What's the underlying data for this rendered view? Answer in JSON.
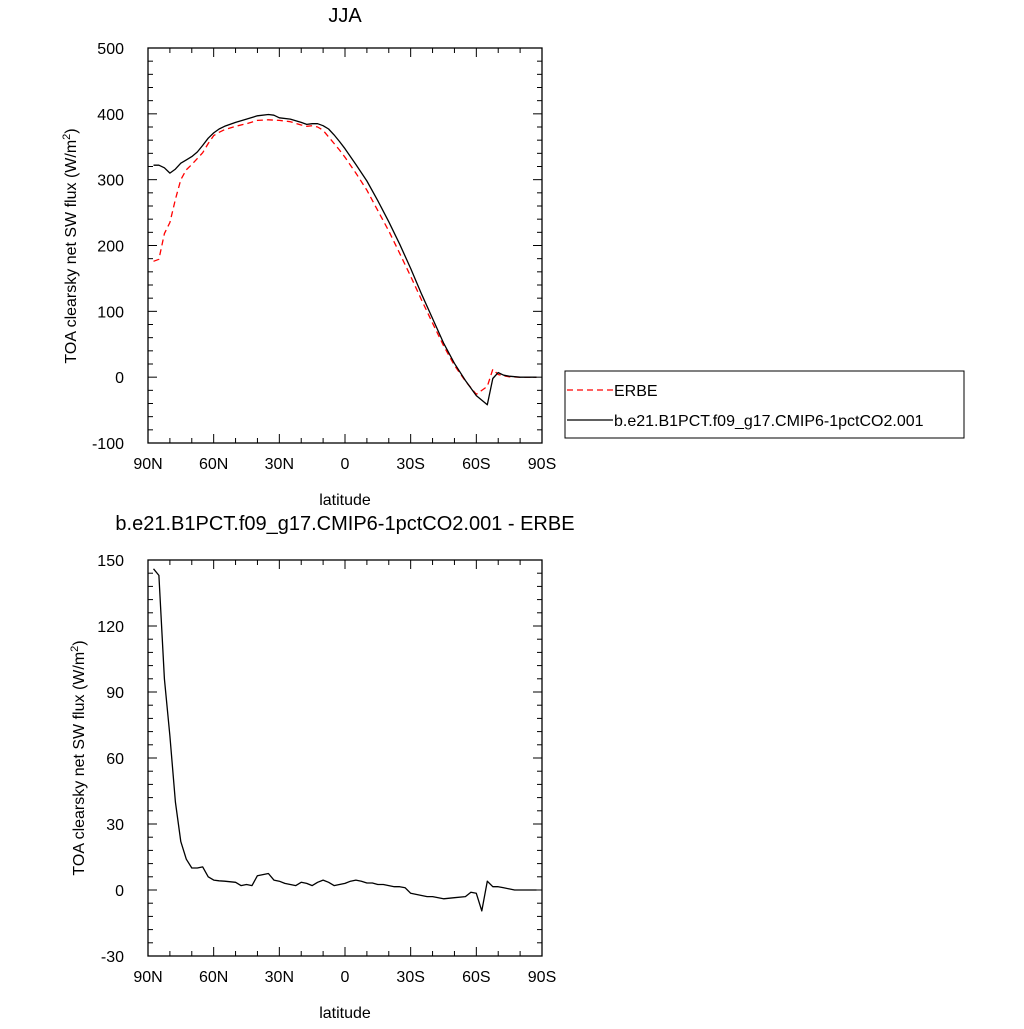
{
  "chart_data": [
    {
      "type": "line",
      "title": "JJA",
      "xlabel": "latitude",
      "ylabel": "TOA clearsky net SW flux (W/m",
      "ylabel_sup": "2",
      "ylabel_close": ")",
      "xlim": [
        90,
        -90
      ],
      "ylim": [
        -100,
        500
      ],
      "xticks": [
        90,
        60,
        30,
        0,
        -30,
        -60,
        -90
      ],
      "xtick_labels": [
        "90N",
        "60N",
        "30N",
        "0",
        "30S",
        "60S",
        "90S"
      ],
      "yticks": [
        -100,
        0,
        100,
        200,
        300,
        400,
        500
      ],
      "ytick_labels": [
        "-100",
        "0",
        "100",
        "200",
        "300",
        "400",
        "500"
      ],
      "legend_position": "right",
      "series": [
        {
          "name": "ERBE",
          "color": "#ff0000",
          "dash": true,
          "x": [
            87.5,
            85,
            82.5,
            80,
            77.5,
            75,
            72.5,
            70,
            67.5,
            65,
            62.5,
            60,
            57.5,
            55,
            50,
            45,
            40,
            35,
            30,
            25,
            20,
            17.5,
            15,
            12.5,
            10,
            7.5,
            5,
            2.5,
            0,
            -5,
            -10,
            -15,
            -20,
            -25,
            -30,
            -35,
            -40,
            -45,
            -50,
            -55,
            -60,
            -65,
            -67.5,
            -70,
            -72.5,
            -75,
            -80,
            -85,
            -87.5
          ],
          "y": [
            176,
            179,
            218,
            235,
            270,
            300,
            315,
            323,
            332,
            341,
            355,
            367,
            372,
            376,
            381,
            385,
            390,
            391,
            390,
            388,
            383,
            381,
            382,
            380,
            375,
            365,
            355,
            345,
            334,
            310,
            284,
            253,
            222,
            188,
            153,
            117,
            82,
            48,
            18,
            -6,
            -26,
            -14,
            12,
            4,
            2,
            0.5,
            0,
            0,
            0
          ]
        },
        {
          "name": "b.e21.B1PCT.f09_g17.CMIP6-1pctCO2.001",
          "color": "#000000",
          "dash": false,
          "x": [
            87.5,
            85,
            82.5,
            80,
            77.5,
            75,
            72.5,
            70,
            67.5,
            65,
            62.5,
            60,
            57.5,
            55,
            50,
            45,
            40,
            35,
            32.5,
            30,
            25,
            20,
            17.5,
            15,
            12.5,
            10,
            7.5,
            5,
            2.5,
            0,
            -5,
            -10,
            -15,
            -20,
            -25,
            -30,
            -35,
            -40,
            -45,
            -50,
            -55,
            -60,
            -65,
            -67.5,
            -70,
            -72.5,
            -75,
            -80,
            -85,
            -87.5
          ],
          "y": [
            322,
            322,
            318,
            310,
            316,
            325,
            330,
            335,
            342,
            352,
            363,
            371,
            377,
            381,
            387,
            392,
            397,
            399,
            398,
            394,
            392,
            387,
            384,
            385,
            385,
            382,
            377,
            368,
            358,
            347,
            323,
            298,
            268,
            236,
            202,
            165,
            126,
            89,
            52,
            21,
            -5,
            -28,
            -42,
            -2,
            7,
            3,
            1.5,
            0,
            0,
            0
          ]
        }
      ]
    },
    {
      "type": "line",
      "title": "b.e21.B1PCT.f09_g17.CMIP6-1pctCO2.001 - ERBE",
      "xlabel": "latitude",
      "ylabel": "TOA clearsky net SW flux (W/m",
      "ylabel_sup": "2",
      "ylabel_close": ")",
      "xlim": [
        90,
        -90
      ],
      "ylim": [
        -30,
        150
      ],
      "xticks": [
        90,
        60,
        30,
        0,
        -30,
        -60,
        -90
      ],
      "xtick_labels": [
        "90N",
        "60N",
        "30N",
        "0",
        "30S",
        "60S",
        "90S"
      ],
      "yticks": [
        -30,
        0,
        30,
        60,
        90,
        120,
        150
      ],
      "ytick_labels": [
        "-30",
        "0",
        "30",
        "60",
        "90",
        "120",
        "150"
      ],
      "series": [
        {
          "color": "#000000",
          "dash": false,
          "x": [
            87.5,
            85,
            82.5,
            80,
            77.5,
            75,
            72.5,
            70,
            67.5,
            65,
            62.5,
            60,
            57.5,
            55,
            50,
            47.5,
            45,
            42.5,
            40,
            37.5,
            35,
            32.5,
            30,
            27.5,
            25,
            22.5,
            20,
            17.5,
            15,
            12.5,
            10,
            7.5,
            5,
            2.5,
            0,
            -2.5,
            -5,
            -7.5,
            -10,
            -12.5,
            -15,
            -17.5,
            -20,
            -22.5,
            -25,
            -27.5,
            -30,
            -32.5,
            -35,
            -37.5,
            -40,
            -45,
            -50,
            -55,
            -57.5,
            -60,
            -62.5,
            -65,
            -67.5,
            -70,
            -72.5,
            -75,
            -77.5,
            -80,
            -82.5,
            -85,
            -87.5
          ],
          "y": [
            146,
            143,
            96,
            70,
            40,
            22,
            14,
            10,
            10,
            10.5,
            6,
            4.5,
            4.2,
            4,
            3.5,
            2,
            2.5,
            2,
            6.5,
            7,
            7.5,
            4.5,
            4,
            3,
            2.5,
            2,
            3.5,
            3,
            2,
            3.5,
            4.5,
            3.5,
            2,
            2.5,
            3,
            4,
            4.5,
            4,
            3.2,
            3.2,
            2.5,
            2.5,
            2,
            1.5,
            1.5,
            1,
            -1.5,
            -2,
            -2.5,
            -3,
            -3,
            -4,
            -3.5,
            -3,
            -1,
            -1.5,
            -9.5,
            4,
            1.5,
            1.5,
            1,
            0.5,
            0,
            0,
            0,
            0,
            0
          ]
        }
      ]
    }
  ]
}
